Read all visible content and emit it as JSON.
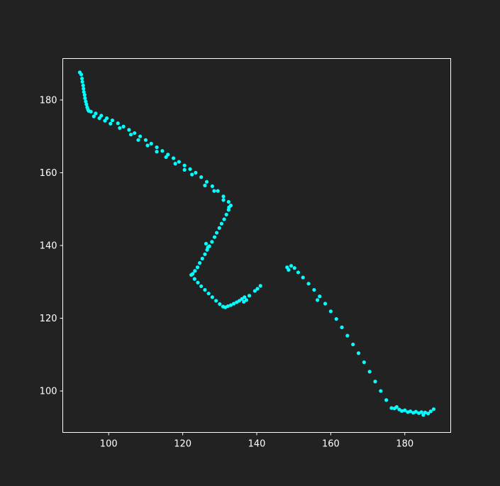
{
  "background": "#222222",
  "chart_data": {
    "type": "scatter",
    "title": "",
    "xlabel": "",
    "ylabel": "",
    "xlim": [
      87.6,
      192.4
    ],
    "ylim": [
      88.6,
      191.4
    ],
    "xticks": [
      100,
      120,
      140,
      160,
      180
    ],
    "yticks": [
      100,
      120,
      140,
      160,
      180
    ],
    "xtick_labels": [
      "100",
      "120",
      "140",
      "160",
      "180"
    ],
    "ytick_labels": [
      "100",
      "120",
      "140",
      "160",
      "180"
    ],
    "grid": false,
    "legend": "none",
    "marker_color": "#00ffff",
    "series": [
      {
        "points": [
          [
            92.2,
            187.6
          ],
          [
            92.6,
            187.0
          ],
          [
            92.8,
            185.9
          ],
          [
            92.9,
            185.0
          ],
          [
            93.1,
            184.0
          ],
          [
            93.2,
            183.1
          ],
          [
            93.3,
            182.2
          ],
          [
            93.5,
            181.4
          ],
          [
            93.6,
            180.5
          ],
          [
            93.8,
            179.6
          ],
          [
            94.0,
            178.8
          ],
          [
            94.2,
            178.0
          ],
          [
            94.4,
            177.4
          ],
          [
            94.6,
            177.0
          ],
          [
            95.2,
            176.8
          ],
          [
            96.5,
            176.3
          ],
          [
            98.0,
            175.7
          ],
          [
            99.5,
            175.0
          ],
          [
            101.0,
            174.4
          ],
          [
            102.5,
            173.6
          ],
          [
            104.0,
            172.7
          ],
          [
            105.5,
            171.8
          ],
          [
            107.0,
            170.9
          ],
          [
            108.5,
            170.0
          ],
          [
            110.0,
            169.0
          ],
          [
            111.5,
            168.0
          ],
          [
            113.0,
            167.0
          ],
          [
            114.5,
            166.0
          ],
          [
            116.0,
            165.0
          ],
          [
            117.5,
            164.0
          ],
          [
            119.0,
            163.0
          ],
          [
            120.5,
            162.0
          ],
          [
            122.0,
            161.0
          ],
          [
            123.5,
            160.0
          ],
          [
            125.0,
            158.8
          ],
          [
            126.5,
            157.5
          ],
          [
            128.0,
            156.3
          ],
          [
            129.5,
            155.0
          ],
          [
            131.0,
            153.5
          ],
          [
            132.4,
            152.0
          ],
          [
            133.0,
            151.0
          ],
          [
            96.0,
            175.5
          ],
          [
            97.5,
            175.0
          ],
          [
            99.0,
            174.3
          ],
          [
            100.5,
            173.5
          ],
          [
            103.0,
            172.3
          ],
          [
            106.0,
            170.5
          ],
          [
            108.0,
            169.0
          ],
          [
            110.5,
            167.5
          ],
          [
            113.0,
            165.8
          ],
          [
            115.5,
            164.3
          ],
          [
            118.0,
            162.5
          ],
          [
            120.5,
            160.8
          ],
          [
            122.5,
            159.5
          ],
          [
            126.0,
            156.5
          ],
          [
            128.5,
            155.0
          ],
          [
            131.0,
            152.5
          ],
          [
            132.5,
            150.5
          ],
          [
            132.4,
            149.8
          ],
          [
            131.8,
            148.5
          ],
          [
            131.2,
            147.2
          ],
          [
            130.5,
            146.0
          ],
          [
            129.9,
            144.8
          ],
          [
            129.2,
            143.5
          ],
          [
            128.6,
            142.3
          ],
          [
            127.9,
            141.0
          ],
          [
            127.2,
            139.8
          ],
          [
            126.6,
            138.8
          ],
          [
            126.0,
            137.6
          ],
          [
            125.3,
            136.4
          ],
          [
            124.6,
            135.2
          ],
          [
            124.0,
            134.0
          ],
          [
            123.3,
            133.0
          ],
          [
            122.7,
            132.2
          ],
          [
            126.3,
            140.5
          ],
          [
            126.8,
            139.5
          ],
          [
            122.3,
            131.9
          ],
          [
            123.2,
            130.8
          ],
          [
            124.1,
            129.8
          ],
          [
            125.0,
            128.8
          ],
          [
            126.0,
            127.8
          ],
          [
            127.0,
            126.8
          ],
          [
            128.0,
            125.8
          ],
          [
            129.0,
            124.8
          ],
          [
            130.0,
            123.9
          ],
          [
            130.9,
            123.2
          ],
          [
            131.5,
            123.0
          ],
          [
            132.2,
            123.3
          ],
          [
            133.0,
            123.6
          ],
          [
            133.8,
            124.0
          ],
          [
            134.6,
            124.4
          ],
          [
            135.3,
            124.8
          ],
          [
            136.0,
            125.3
          ],
          [
            136.7,
            125.8
          ],
          [
            136.5,
            124.5
          ],
          [
            137.2,
            125.0
          ],
          [
            138.0,
            126.2
          ],
          [
            139.5,
            127.5
          ],
          [
            140.2,
            128.1
          ],
          [
            141.0,
            128.9
          ],
          [
            148.2,
            134.0
          ],
          [
            148.6,
            133.3
          ],
          [
            149.3,
            134.4
          ],
          [
            150.2,
            133.8
          ],
          [
            151.2,
            132.6
          ],
          [
            152.5,
            131.2
          ],
          [
            154.0,
            129.5
          ],
          [
            155.5,
            127.8
          ],
          [
            157.0,
            126.0
          ],
          [
            158.5,
            124.0
          ],
          [
            160.0,
            121.9
          ],
          [
            161.5,
            119.8
          ],
          [
            163.0,
            117.5
          ],
          [
            164.5,
            115.2
          ],
          [
            166.0,
            112.8
          ],
          [
            167.5,
            110.4
          ],
          [
            169.0,
            107.9
          ],
          [
            170.5,
            105.3
          ],
          [
            172.0,
            102.6
          ],
          [
            173.5,
            100.0
          ],
          [
            175.0,
            97.5
          ],
          [
            176.4,
            95.3
          ],
          [
            156.4,
            125.0
          ],
          [
            177.2,
            95.2
          ],
          [
            177.8,
            95.6
          ],
          [
            178.5,
            94.9
          ],
          [
            179.2,
            94.5
          ],
          [
            180.0,
            94.7
          ],
          [
            180.8,
            94.2
          ],
          [
            181.5,
            94.4
          ],
          [
            182.3,
            94.0
          ],
          [
            183.0,
            94.3
          ],
          [
            183.8,
            93.9
          ],
          [
            184.5,
            94.2
          ],
          [
            185.0,
            93.4
          ],
          [
            185.5,
            94.1
          ],
          [
            186.3,
            93.8
          ],
          [
            187.0,
            94.4
          ],
          [
            187.8,
            95.0
          ]
        ]
      }
    ]
  }
}
